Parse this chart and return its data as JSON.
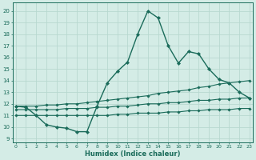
{
  "xlabel": "Humidex (Indice chaleur)",
  "bg_color": "#d4ece6",
  "grid_color": "#b8d8d0",
  "line_color": "#1a6b5a",
  "x_ticks": [
    0,
    1,
    2,
    3,
    4,
    5,
    6,
    7,
    8,
    9,
    10,
    11,
    12,
    13,
    14,
    15,
    16,
    17,
    18,
    19,
    20,
    21,
    22,
    23
  ],
  "y_ticks": [
    9,
    10,
    11,
    12,
    13,
    14,
    15,
    16,
    17,
    18,
    19,
    20
  ],
  "xlim": [
    -0.3,
    23.3
  ],
  "ylim": [
    8.7,
    20.7
  ],
  "series": [
    {
      "x": [
        0,
        1,
        2,
        3,
        4,
        5,
        6,
        7,
        8,
        9,
        10,
        11,
        12,
        13,
        14,
        15,
        16,
        17,
        18,
        19,
        20,
        21,
        22,
        23
      ],
      "y": [
        11.8,
        11.7,
        11.0,
        10.2,
        10.0,
        9.9,
        9.6,
        9.6,
        11.8,
        13.8,
        14.8,
        15.6,
        18.0,
        20.0,
        19.4,
        17.0,
        15.5,
        16.5,
        16.3,
        15.0,
        14.1,
        13.8,
        13.0,
        12.5
      ],
      "marker": "D",
      "markersize": 2.2,
      "linewidth": 1.0
    },
    {
      "x": [
        0,
        1,
        2,
        3,
        4,
        5,
        6,
        7,
        8,
        9,
        10,
        11,
        12,
        13,
        14,
        15,
        16,
        17,
        18,
        19,
        20,
        21,
        22,
        23
      ],
      "y": [
        11.8,
        11.8,
        11.8,
        11.9,
        11.9,
        12.0,
        12.0,
        12.1,
        12.2,
        12.3,
        12.4,
        12.5,
        12.6,
        12.7,
        12.9,
        13.0,
        13.1,
        13.2,
        13.4,
        13.5,
        13.7,
        13.8,
        13.9,
        14.0
      ],
      "marker": "D",
      "markersize": 1.8,
      "linewidth": 0.8
    },
    {
      "x": [
        0,
        1,
        2,
        3,
        4,
        5,
        6,
        7,
        8,
        9,
        10,
        11,
        12,
        13,
        14,
        15,
        16,
        17,
        18,
        19,
        20,
        21,
        22,
        23
      ],
      "y": [
        11.5,
        11.5,
        11.5,
        11.5,
        11.5,
        11.6,
        11.6,
        11.6,
        11.7,
        11.7,
        11.8,
        11.8,
        11.9,
        12.0,
        12.0,
        12.1,
        12.1,
        12.2,
        12.3,
        12.3,
        12.4,
        12.4,
        12.5,
        12.5
      ],
      "marker": "D",
      "markersize": 1.8,
      "linewidth": 0.8
    },
    {
      "x": [
        0,
        1,
        2,
        3,
        4,
        5,
        6,
        7,
        8,
        9,
        10,
        11,
        12,
        13,
        14,
        15,
        16,
        17,
        18,
        19,
        20,
        21,
        22,
        23
      ],
      "y": [
        11.0,
        11.0,
        11.0,
        11.0,
        11.0,
        11.0,
        11.0,
        11.0,
        11.0,
        11.0,
        11.1,
        11.1,
        11.2,
        11.2,
        11.2,
        11.3,
        11.3,
        11.4,
        11.4,
        11.5,
        11.5,
        11.5,
        11.6,
        11.6
      ],
      "marker": "D",
      "markersize": 1.8,
      "linewidth": 0.8
    }
  ]
}
